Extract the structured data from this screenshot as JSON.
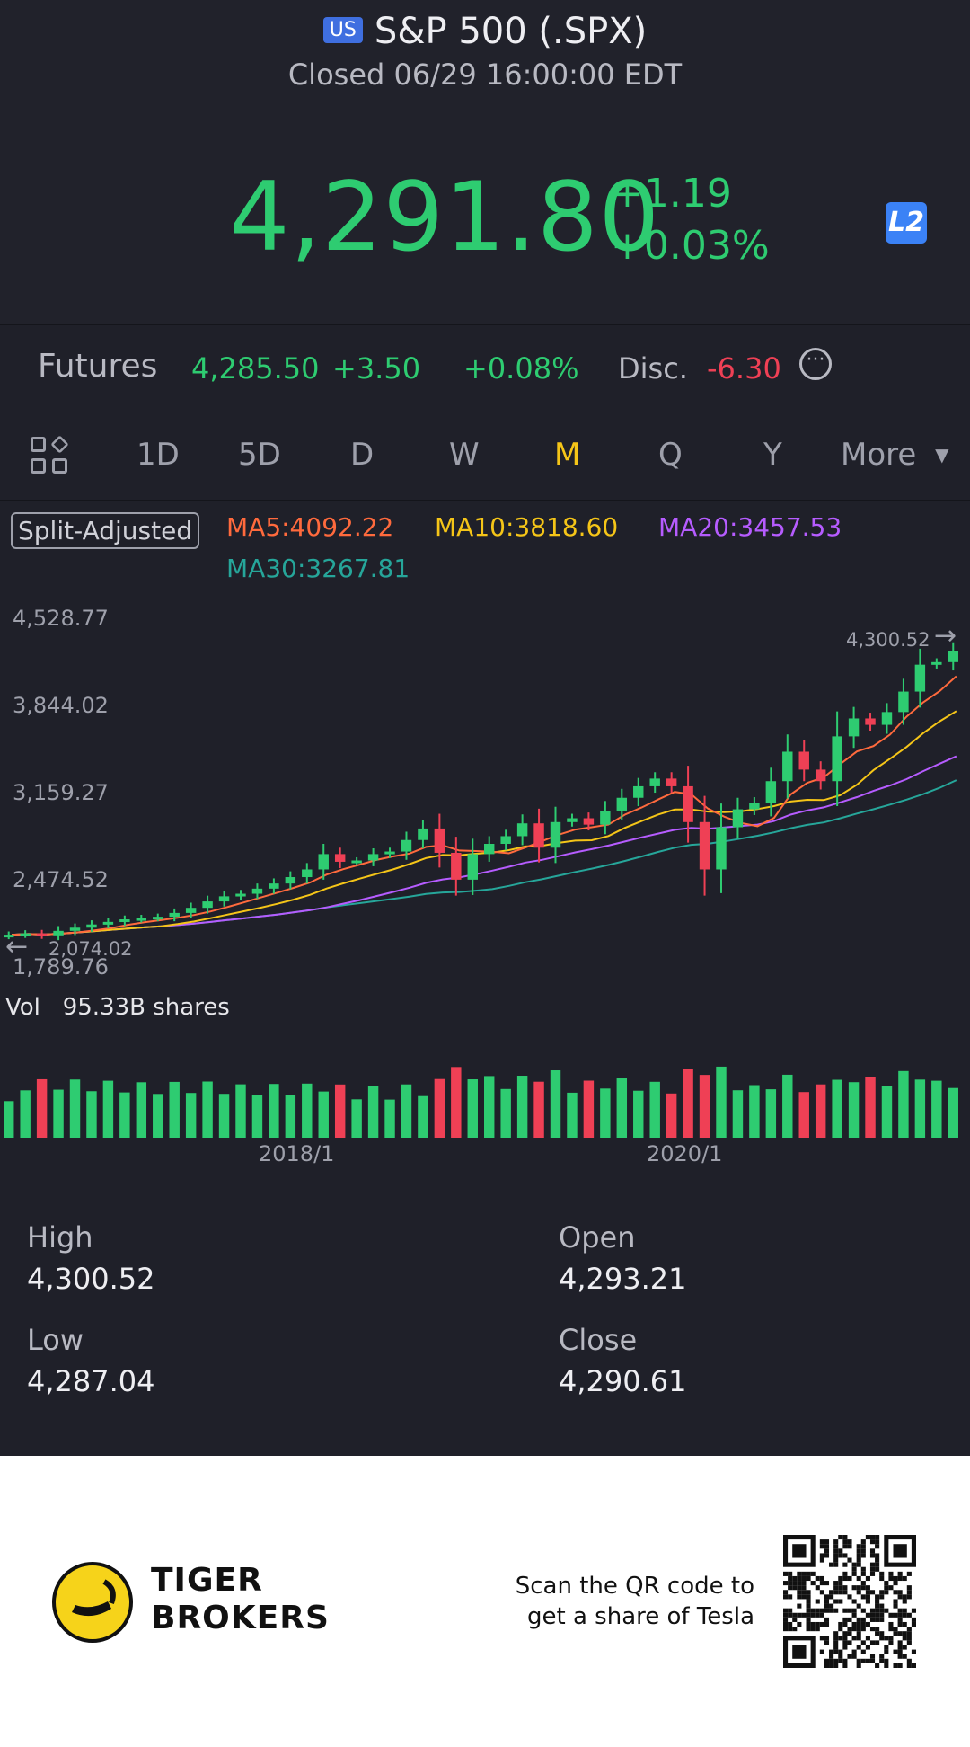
{
  "header": {
    "badge": "US",
    "title": "S&P 500 (.SPX)",
    "status": "Closed 06/29 16:00:00 EDT",
    "price": "4,291.80",
    "change": "+1.19",
    "change_pct": "+0.03%",
    "level_badge": "L2"
  },
  "futures": {
    "label": "Futures",
    "price": "4,285.50",
    "change": "+3.50",
    "change_pct": "+0.08%",
    "disc_label": "Disc.",
    "disc_value": "-6.30",
    "more_icon": "ellipsis-circle-icon"
  },
  "periods": {
    "items": [
      "1D",
      "5D",
      "D",
      "W",
      "M",
      "Q",
      "Y",
      "More"
    ],
    "active": "M"
  },
  "indicators": {
    "split_adjusted": "Split-Adjusted",
    "ma5": "MA5:4092.22",
    "ma10": "MA10:3818.60",
    "ma20": "MA20:3457.53",
    "ma30": "MA30:3267.81",
    "colors": {
      "ma5": "#ff6a3d",
      "ma10": "#f5c518",
      "ma20": "#b65cff",
      "ma30": "#26a69a"
    }
  },
  "chart": {
    "y_labels": [
      "4,528.77",
      "3,844.02",
      "3,159.27",
      "2,474.52",
      "1,789.76"
    ],
    "high_marker": "4,300.52",
    "low_marker": "2,074.02",
    "vol_label": "Vol",
    "vol_value": "95.33B shares",
    "x_labels": [
      "2018/1",
      "2020/1"
    ],
    "up_color": "#2ecc71",
    "down_color": "#ef4055"
  },
  "chart_data": {
    "type": "candlestick",
    "period": "M",
    "ylim": [
      1789.76,
      4528.77
    ],
    "closes": [
      2070,
      2080,
      2065,
      2100,
      2125,
      2150,
      2170,
      2190,
      2200,
      2210,
      2240,
      2280,
      2330,
      2370,
      2390,
      2430,
      2470,
      2520,
      2580,
      2700,
      2640,
      2650,
      2700,
      2720,
      2810,
      2900,
      2710,
      2500,
      2700,
      2780,
      2840,
      2940,
      2750,
      2950,
      2980,
      2930,
      3040,
      3140,
      3230,
      3290,
      3230,
      2950,
      2580,
      2910,
      3050,
      3100,
      3270,
      3500,
      3360,
      3270,
      3620,
      3760,
      3710,
      3810,
      3970,
      4180,
      4200,
      4290
    ],
    "volume_unit": "B shares"
  },
  "stats": {
    "high_label": "High",
    "high_value": "4,300.52",
    "open_label": "Open",
    "open_value": "4,293.21",
    "low_label": "Low",
    "low_value": "4,287.04",
    "close_label": "Close",
    "close_value": "4,290.61"
  },
  "footer": {
    "brand_line1": "TIGER",
    "brand_line2": "BROKERS",
    "scan_line1": "Scan the QR code to",
    "scan_line2": "get a share of Tesla"
  }
}
